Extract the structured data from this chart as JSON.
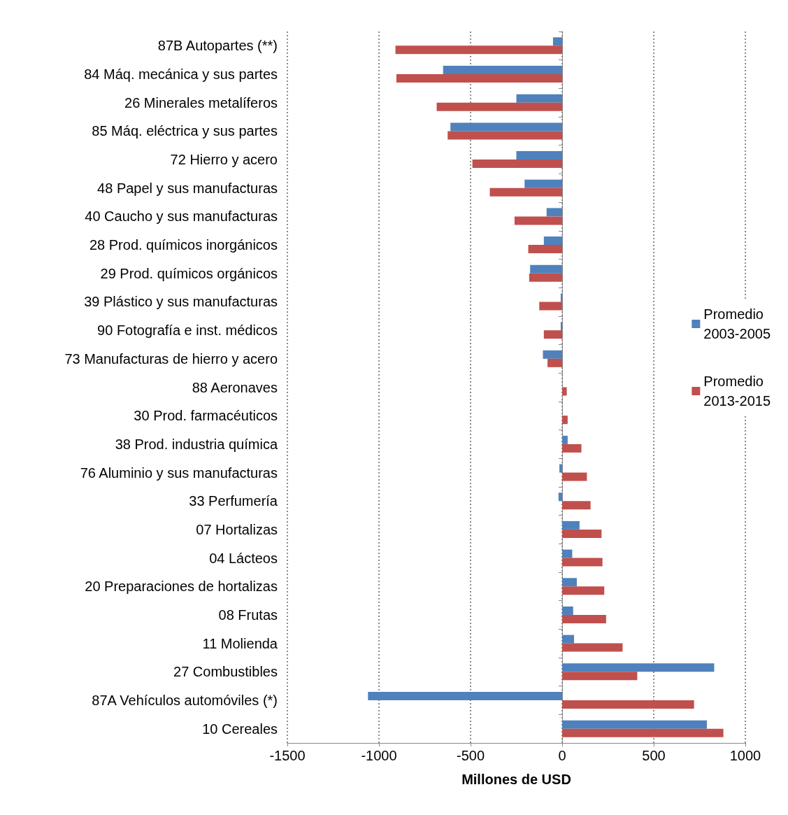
{
  "chart_data": {
    "type": "bar",
    "orientation": "horizontal",
    "xlabel": "Millones de USD",
    "categories": [
      "87B Autopartes (**)",
      "84 Máq. mecánica y sus partes",
      "26 Minerales metalíferos",
      "85 Máq. eléctrica y sus partes",
      "72 Hierro y acero",
      "48 Papel y sus manufacturas",
      "40 Caucho y sus manufacturas",
      "28 Prod. químicos inorgánicos",
      "29 Prod. químicos orgánicos",
      "39 Plástico y sus manufacturas",
      "90 Fotografía e inst. médicos",
      "73 Manufacturas de hierro y acero",
      "88 Aeronaves",
      "30 Prod. farmacéuticos",
      "38 Prod. industria química",
      "76 Aluminio y sus manufacturas",
      "33 Perfumería",
      "07 Hortalizas",
      "04 Lácteos",
      "20 Preparaciones de hortalizas",
      "08 Frutas",
      "11 Molienda",
      "27 Combustibles",
      "87A Vehículos automóviles (*)",
      "10 Cereales"
    ],
    "series": [
      {
        "name": "Promedio 2003-2005",
        "color": "#4f81bd",
        "values": [
          -50,
          -650,
          -250,
          -610,
          -250,
          -205,
          -85,
          -100,
          -175,
          -8,
          -8,
          -105,
          0,
          0,
          30,
          -15,
          -20,
          95,
          55,
          80,
          60,
          65,
          830,
          -1060,
          790
        ]
      },
      {
        "name": "Promedio 2013-2015",
        "color": "#c0504d",
        "values": [
          -910,
          -905,
          -685,
          -625,
          -490,
          -395,
          -260,
          -185,
          -180,
          -125,
          -100,
          -80,
          25,
          30,
          105,
          135,
          155,
          215,
          220,
          230,
          240,
          330,
          410,
          720,
          880
        ]
      }
    ],
    "xlim": [
      -1500,
      1000
    ],
    "xticks": [
      -1500,
      -1000,
      -500,
      0,
      500,
      1000
    ],
    "grid": "x",
    "legend": "right"
  }
}
